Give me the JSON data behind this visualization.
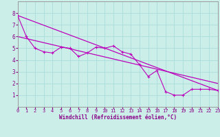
{
  "xlabel": "Windchill (Refroidissement éolien,°C)",
  "background_color": "#cceee8",
  "grid_color": "#aaddda",
  "line_color": "#bb00bb",
  "spine_color": "#999999",
  "tick_color": "#880088",
  "xlim": [
    0,
    23
  ],
  "ylim": [
    0,
    9
  ],
  "xticks": [
    0,
    1,
    2,
    3,
    4,
    5,
    6,
    7,
    8,
    9,
    10,
    11,
    12,
    13,
    14,
    15,
    16,
    17,
    18,
    19,
    20,
    21,
    22,
    23
  ],
  "yticks": [
    1,
    2,
    3,
    4,
    5,
    6,
    7,
    8
  ],
  "series1_x": [
    0,
    1,
    2,
    3,
    4,
    5,
    6,
    7,
    8,
    9,
    10,
    11,
    12,
    13,
    14,
    15,
    16,
    17,
    18,
    19,
    20,
    21,
    22,
    23
  ],
  "series1_y": [
    7.8,
    6.0,
    5.0,
    4.7,
    4.6,
    5.1,
    5.0,
    4.3,
    4.6,
    5.1,
    5.0,
    5.2,
    4.7,
    4.5,
    3.6,
    2.6,
    3.1,
    1.3,
    1.0,
    1.0,
    1.5,
    1.5,
    1.5,
    1.4
  ],
  "line1_x": [
    0,
    23
  ],
  "line1_y": [
    7.8,
    1.4
  ],
  "line2_x": [
    0,
    23
  ],
  "line2_y": [
    6.0,
    2.0
  ],
  "tick_fontsize": 5.0,
  "xlabel_fontsize": 5.5
}
